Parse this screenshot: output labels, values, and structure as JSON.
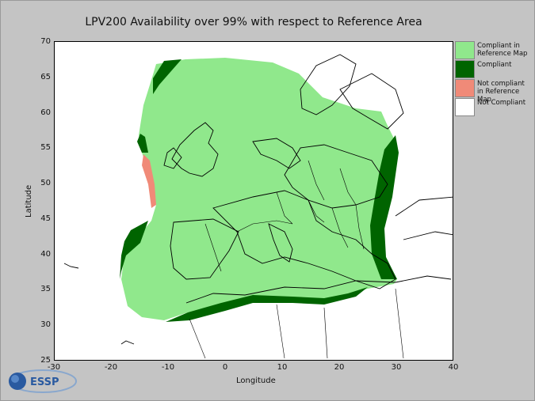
{
  "title": "LPV200 Availability over 99% with respect to Reference Area",
  "map": {
    "xlabel": "Longitude",
    "ylabel": "Latitude",
    "lon_range": [
      -30,
      40
    ],
    "lat_range": [
      25,
      70
    ],
    "x_ticks": [
      "-30",
      "-20",
      "-10",
      "0",
      "10",
      "20",
      "30",
      "40"
    ],
    "y_ticks": [
      "70",
      "65",
      "60",
      "55",
      "50",
      "45",
      "40",
      "35",
      "30",
      "25"
    ]
  },
  "legend": [
    {
      "label": "Compliant in Reference Map",
      "color": "#90e88c"
    },
    {
      "label": "Compliant",
      "color": "#006400"
    },
    {
      "label": "Not compliant in Reference Map",
      "color": "#f08a78"
    },
    {
      "label": "Not Compliant",
      "color": "#ffffff"
    }
  ],
  "logo": {
    "text": "ESSP"
  }
}
